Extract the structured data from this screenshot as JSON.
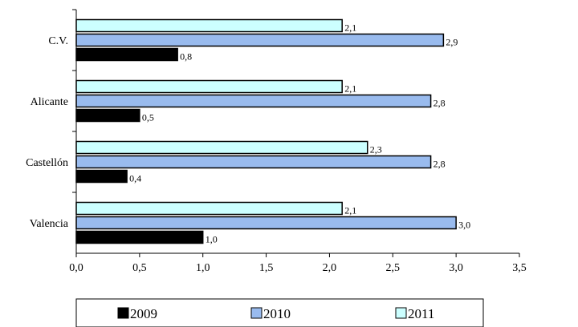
{
  "chart_data": {
    "type": "bar",
    "orientation": "horizontal",
    "categories": [
      "C.V.",
      "Alicante",
      "Castellón",
      "Valencia"
    ],
    "series": [
      {
        "name": "2009",
        "color": "#000000",
        "values": [
          0.8,
          0.5,
          0.4,
          1.0
        ],
        "value_labels": [
          "0,8",
          "0,5",
          "0,4",
          "1,0"
        ]
      },
      {
        "name": "2010",
        "color": "#99BBEE",
        "values": [
          2.9,
          2.8,
          2.8,
          3.0
        ],
        "value_labels": [
          "2,9",
          "2,8",
          "2,8",
          "3,0"
        ]
      },
      {
        "name": "2011",
        "color": "#CCFFFF",
        "values": [
          2.1,
          2.1,
          2.3,
          2.1
        ],
        "value_labels": [
          "2,1",
          "2,1",
          "2,3",
          "2,1"
        ]
      }
    ],
    "xlim": [
      0,
      3.5
    ],
    "x_ticks": [
      0,
      0.5,
      1.0,
      1.5,
      2.0,
      2.5,
      3.0,
      3.5
    ],
    "x_tick_labels": [
      "0,0",
      "0,5",
      "1,0",
      "1,5",
      "2,0",
      "2,5",
      "3,0",
      "3,5"
    ],
    "grid": false,
    "legend": {
      "position": "bottom",
      "entries": [
        "2009",
        "2010",
        "2011"
      ]
    },
    "title": "",
    "xlabel": "",
    "ylabel": ""
  }
}
